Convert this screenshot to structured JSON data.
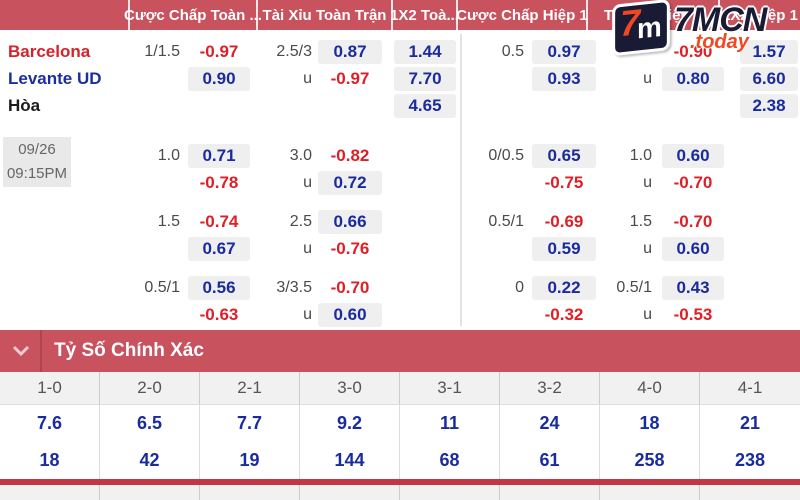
{
  "colors": {
    "header_bg": "#c8525e",
    "bar_red": "#c13745",
    "odds_blue": "#1a2b9e",
    "odds_red": "#de1f26",
    "pill_bg": "#efefef"
  },
  "brand": {
    "name": "7MCN",
    "tld": ".today",
    "mark_seven": "7",
    "mark_m": "m"
  },
  "table": {
    "header_labels": [
      "Cược Chấp Toàn ...",
      "Tài Xỉu Toàn Trận",
      "1X2 Toà...",
      "Cược Chấp Hiệp 1",
      "Tài Xỉu Hiệp 1",
      "1X2 Hiệp 1"
    ],
    "teams": [
      {
        "name": "Barcelona",
        "color": "#d6222a"
      },
      {
        "name": "Levante UD",
        "color": "#1b2f9e"
      },
      {
        "name": "Hòa",
        "color": "#1a1a1a"
      }
    ],
    "schedule": {
      "date": "09/26",
      "time": "09:15PM"
    },
    "groups": [
      {
        "cc": {
          "line": "1/1.5",
          "a": "-0.97",
          "b": "0.90"
        },
        "tx": {
          "line": "2.5/3",
          "a": "0.87",
          "u": "u",
          "b": "-0.97"
        },
        "x12": [
          "1.44",
          "7.70",
          "4.65"
        ],
        "cch": {
          "line": "0.5",
          "a": "0.97",
          "b": "0.93"
        },
        "txh": {
          "line": "",
          "a": "-0.90",
          "u": "u",
          "b": "0.80"
        },
        "x12h": [
          "1.57",
          "6.60",
          "2.38"
        ]
      },
      {
        "cc": {
          "line": "1.0",
          "a": "0.71",
          "b": "-0.78"
        },
        "tx": {
          "line": "3.0",
          "a": "-0.82",
          "u": "u",
          "b": "0.72"
        },
        "cch": {
          "line": "0/0.5",
          "a": "0.65",
          "b": "-0.75"
        },
        "txh": {
          "line": "1.0",
          "a": "0.60",
          "u": "u",
          "b": "-0.70"
        }
      },
      {
        "cc": {
          "line": "1.5",
          "a": "-0.74",
          "b": "0.67"
        },
        "tx": {
          "line": "2.5",
          "a": "0.66",
          "u": "u",
          "b": "-0.76"
        },
        "cch": {
          "line": "0.5/1",
          "a": "-0.69",
          "b": "0.59"
        },
        "txh": {
          "line": "1.5",
          "a": "-0.70",
          "u": "u",
          "b": "0.60"
        }
      },
      {
        "cc": {
          "line": "0.5/1",
          "a": "0.56",
          "b": "-0.63"
        },
        "tx": {
          "line": "3/3.5",
          "a": "-0.70",
          "u": "u",
          "b": "0.60"
        },
        "cch": {
          "line": "0",
          "a": "0.22",
          "b": "-0.32"
        },
        "txh": {
          "line": "0.5/1",
          "a": "0.43",
          "u": "u",
          "b": "-0.53"
        }
      }
    ]
  },
  "correct_score": {
    "title": "Tỷ Số Chính Xác",
    "scores": [
      "1-0",
      "2-0",
      "2-1",
      "3-0",
      "3-1",
      "3-2",
      "4-0",
      "4-1"
    ],
    "row1": [
      "7.6",
      "6.5",
      "7.7",
      "9.2",
      "11",
      "24",
      "18",
      "21"
    ],
    "row2": [
      "18",
      "42",
      "19",
      "144",
      "68",
      "61",
      "258",
      "238"
    ]
  }
}
